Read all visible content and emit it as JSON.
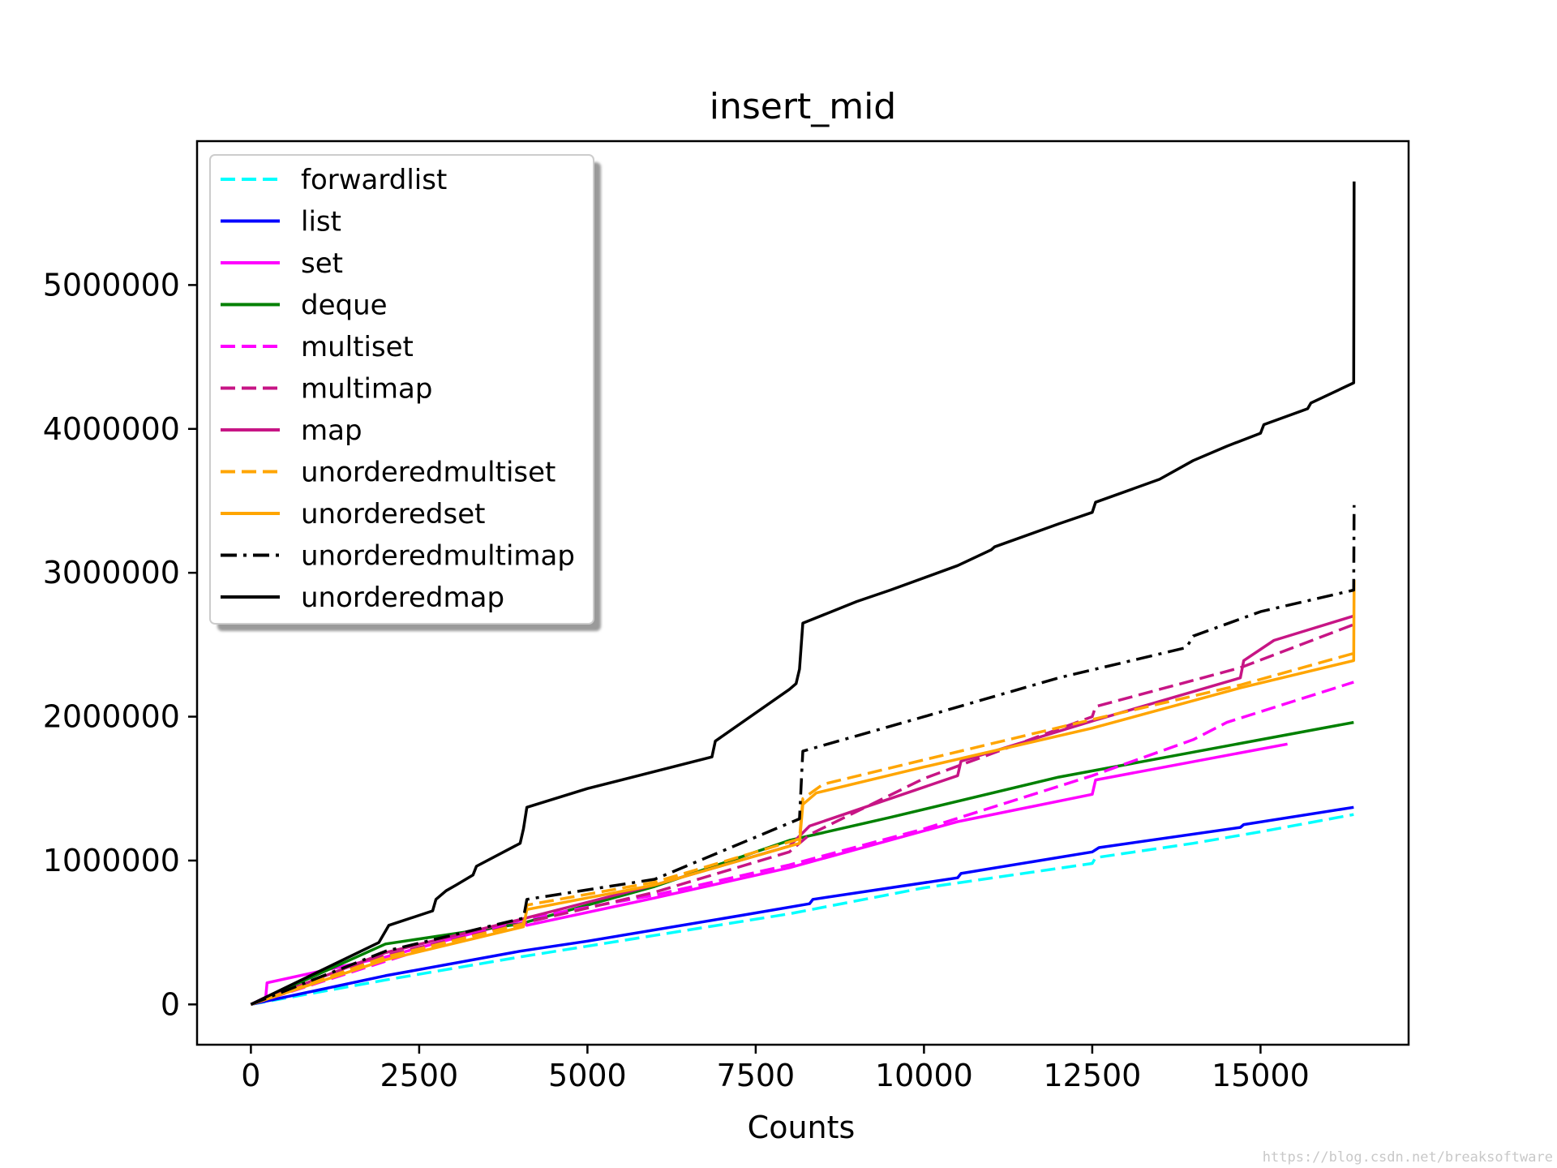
{
  "chart_data": {
    "type": "line",
    "title": "insert_mid",
    "xlabel": "Counts",
    "ylabel": "",
    "xlim": [
      -800,
      17200
    ],
    "ylim": [
      -280000,
      6000000
    ],
    "x_ticks": [
      0,
      2500,
      5000,
      7500,
      10000,
      12500,
      15000
    ],
    "y_ticks": [
      0,
      1000000,
      2000000,
      3000000,
      4000000,
      5000000
    ],
    "grid": false,
    "legend_position": "top-left",
    "series": [
      {
        "name": "forwardlist",
        "color": "#00ffff",
        "style": "dashed",
        "x": [
          0,
          2000,
          4000,
          6000,
          8000,
          10000,
          12500,
          12550,
          14000,
          15000,
          16384
        ],
        "y": [
          0,
          170000,
          330000,
          480000,
          630000,
          810000,
          980000,
          1020000,
          1120000,
          1200000,
          1320000
        ]
      },
      {
        "name": "list",
        "color": "#0000ff",
        "style": "solid",
        "x": [
          0,
          2000,
          4000,
          5000,
          7300,
          8300,
          8350,
          10500,
          10550,
          12500,
          12600,
          14700,
          14750,
          16384
        ],
        "y": [
          0,
          200000,
          370000,
          440000,
          620000,
          700000,
          730000,
          880000,
          910000,
          1060000,
          1090000,
          1230000,
          1250000,
          1370000
        ]
      },
      {
        "name": "set",
        "color": "#ff00ff",
        "style": "solid",
        "x": [
          0,
          220,
          240,
          2000,
          4050,
          4100,
          6000,
          8000,
          10500,
          12500,
          12550,
          15400
        ],
        "y": [
          0,
          50000,
          150000,
          330000,
          590000,
          550000,
          740000,
          950000,
          1270000,
          1460000,
          1560000,
          1810000
        ]
      },
      {
        "name": "deque",
        "color": "#008000",
        "style": "solid",
        "x": [
          0,
          2000,
          4000,
          6000,
          8000,
          9500,
          12000,
          16384
        ],
        "y": [
          0,
          420000,
          560000,
          820000,
          1140000,
          1300000,
          1580000,
          1960000
        ]
      },
      {
        "name": "multiset",
        "color": "#ff00ff",
        "style": "dashed",
        "x": [
          0,
          2000,
          4000,
          6000,
          8000,
          10000,
          12500,
          14000,
          14500,
          16384
        ],
        "y": [
          0,
          300000,
          590000,
          760000,
          970000,
          1220000,
          1590000,
          1840000,
          1960000,
          2240000
        ]
      },
      {
        "name": "multimap",
        "color": "#c71585",
        "style": "dashed",
        "x": [
          0,
          2000,
          4000,
          6000,
          8000,
          8300,
          10000,
          12500,
          12550,
          14700,
          16384
        ],
        "y": [
          0,
          340000,
          560000,
          780000,
          1060000,
          1180000,
          1570000,
          2000000,
          2070000,
          2340000,
          2640000
        ]
      },
      {
        "name": "map",
        "color": "#c71585",
        "style": "solid",
        "x": [
          0,
          2000,
          4000,
          6000,
          8000,
          8300,
          10500,
          10550,
          12500,
          14700,
          14750,
          15200,
          16384
        ],
        "y": [
          0,
          360000,
          590000,
          830000,
          1100000,
          1240000,
          1590000,
          1690000,
          1970000,
          2270000,
          2390000,
          2530000,
          2700000
        ]
      },
      {
        "name": "unorderedmultiset",
        "color": "#ffa500",
        "style": "dashed",
        "x": [
          0,
          2000,
          4050,
          4100,
          6000,
          8150,
          8200,
          8500,
          10000,
          12500,
          14700,
          16384
        ],
        "y": [
          0,
          330000,
          560000,
          690000,
          850000,
          1150000,
          1430000,
          1530000,
          1700000,
          1980000,
          2220000,
          2440000
        ]
      },
      {
        "name": "unorderedset",
        "color": "#ffa500",
        "style": "solid",
        "x": [
          0,
          2000,
          4050,
          4100,
          6000,
          8150,
          8200,
          8400,
          10000,
          12500,
          14700,
          16384,
          16390
        ],
        "y": [
          0,
          310000,
          540000,
          660000,
          830000,
          1120000,
          1390000,
          1470000,
          1650000,
          1920000,
          2200000,
          2390000,
          2950000
        ]
      },
      {
        "name": "unorderedmultimap",
        "color": "#000000",
        "style": "dashdot",
        "x": [
          0,
          2000,
          4050,
          4100,
          6000,
          8150,
          8200,
          10000,
          12000,
          13900,
          14000,
          15000,
          16384,
          16390
        ],
        "y": [
          0,
          370000,
          600000,
          730000,
          870000,
          1290000,
          1760000,
          2000000,
          2270000,
          2480000,
          2560000,
          2730000,
          2880000,
          3470000
        ]
      },
      {
        "name": "unorderedmap",
        "color": "#000000",
        "style": "solid",
        "x": [
          0,
          1900,
          2000,
          2050,
          2700,
          2750,
          2900,
          3050,
          3300,
          3350,
          4000,
          4050,
          4100,
          5000,
          6850,
          6900,
          8000,
          8100,
          8150,
          8200,
          9000,
          9500,
          10500,
          11000,
          11050,
          12000,
          12500,
          12550,
          13500,
          14000,
          14500,
          15000,
          15050,
          15700,
          15750,
          16384,
          16390
        ],
        "y": [
          0,
          430000,
          510000,
          550000,
          650000,
          730000,
          790000,
          830000,
          900000,
          960000,
          1120000,
          1220000,
          1370000,
          1500000,
          1720000,
          1830000,
          2190000,
          2230000,
          2330000,
          2650000,
          2800000,
          2880000,
          3050000,
          3160000,
          3180000,
          3340000,
          3420000,
          3490000,
          3650000,
          3780000,
          3880000,
          3970000,
          4030000,
          4140000,
          4180000,
          4320000,
          5720000
        ]
      }
    ]
  },
  "watermark": "https://blog.csdn.net/breaksoftware"
}
